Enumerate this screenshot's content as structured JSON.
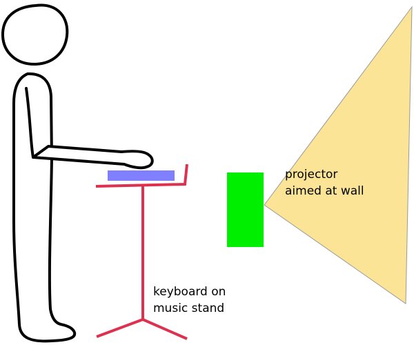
{
  "labels": {
    "keyboard_stand": [
      "keyboard on",
      "music stand"
    ],
    "projector": [
      "projector",
      "aimed at wall"
    ]
  },
  "colors": {
    "outline": "#000000",
    "keyboard": "#8080ff",
    "stand": "#dc3250",
    "projector": "#00ee00",
    "beam": "#fce496",
    "beam_stroke": "#999999"
  }
}
